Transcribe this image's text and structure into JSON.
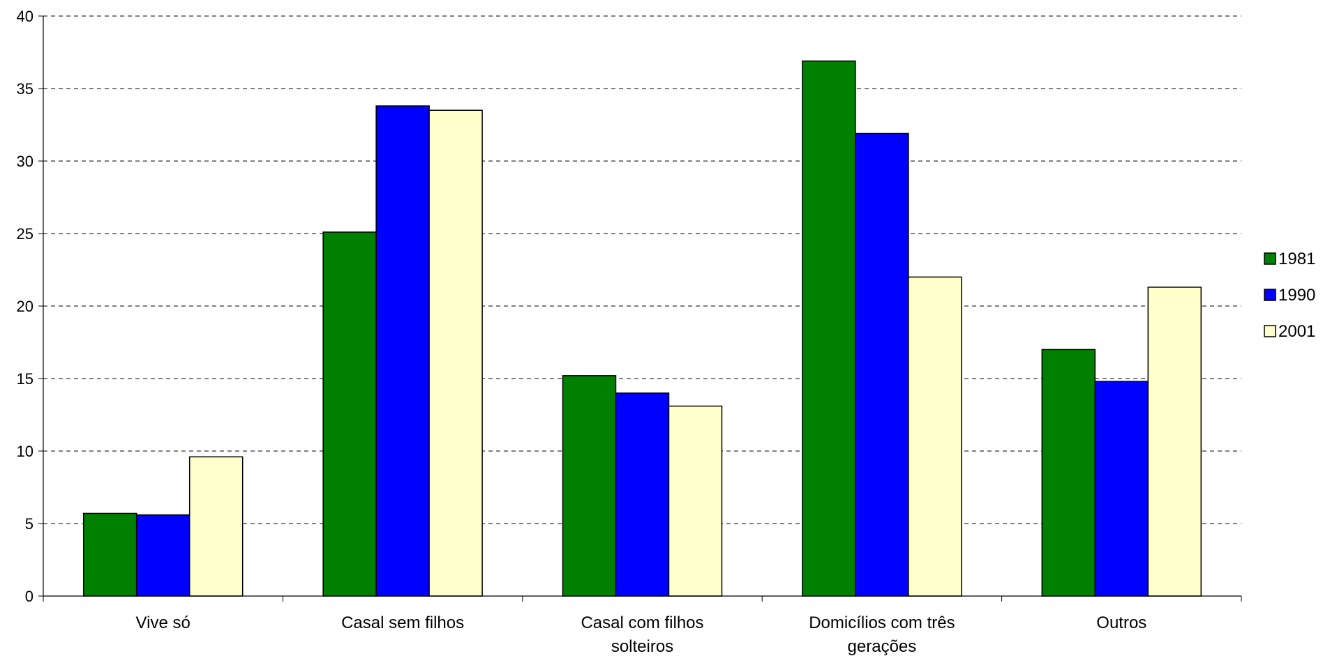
{
  "chart_data": {
    "type": "bar",
    "title": "",
    "xlabel": "",
    "ylabel": "",
    "ylim": [
      0,
      40
    ],
    "yticks": [
      0,
      5,
      10,
      15,
      20,
      25,
      30,
      35,
      40
    ],
    "grid": true,
    "legend_position": "right",
    "categories": [
      "Vive só",
      "Casal sem filhos",
      "Casal com filhos solteiros",
      "Domicílios com três gerações",
      "Outros"
    ],
    "series": [
      {
        "name": "1981",
        "color": "#008000",
        "values": [
          5.7,
          25.1,
          15.2,
          36.9,
          17.0
        ]
      },
      {
        "name": "1990",
        "color": "#0000ff",
        "values": [
          5.6,
          33.8,
          14.0,
          31.9,
          14.8
        ]
      },
      {
        "name": "2001",
        "color": "#ffffcc",
        "values": [
          9.6,
          33.5,
          13.1,
          22.0,
          21.3
        ]
      }
    ]
  }
}
